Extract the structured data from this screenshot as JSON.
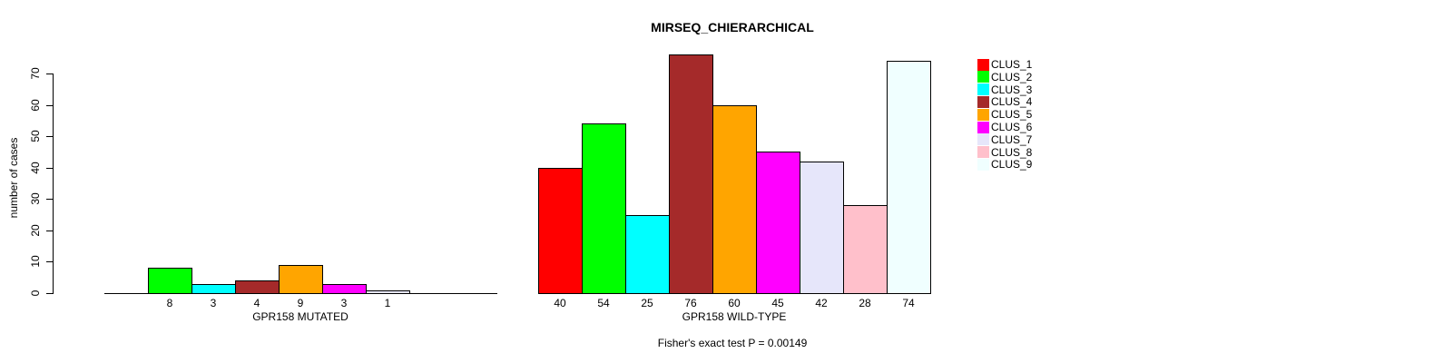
{
  "chart_data": {
    "type": "bar",
    "title": "MIRSEQ_CHIERARCHICAL",
    "ylabel": "number of cases",
    "ylim": [
      0,
      70
    ],
    "yticks": [
      0,
      10,
      20,
      30,
      40,
      50,
      60,
      70
    ],
    "grid": false,
    "legend_position": "right",
    "annotation": "Fisher's exact test P = 0.00149",
    "clusters": [
      {
        "label": "CLUS_1",
        "color": "#FF0000"
      },
      {
        "label": "CLUS_2",
        "color": "#00FF00"
      },
      {
        "label": "CLUS_3",
        "color": "#00FFFF"
      },
      {
        "label": "CLUS_4",
        "color": "#A52A2A"
      },
      {
        "label": "CLUS_5",
        "color": "#FFA500"
      },
      {
        "label": "CLUS_6",
        "color": "#FF00FF"
      },
      {
        "label": "CLUS_7",
        "color": "#E6E6FA"
      },
      {
        "label": "CLUS_8",
        "color": "#FFC0CB"
      },
      {
        "label": "CLUS_9",
        "color": "#F0FFFF"
      }
    ],
    "groups": [
      {
        "label": "GPR158 MUTATED",
        "values": [
          0,
          8,
          3,
          4,
          9,
          3,
          1,
          0,
          0
        ]
      },
      {
        "label": "GPR158 WILD-TYPE",
        "values": [
          40,
          54,
          25,
          76,
          60,
          45,
          42,
          28,
          74
        ]
      }
    ]
  }
}
